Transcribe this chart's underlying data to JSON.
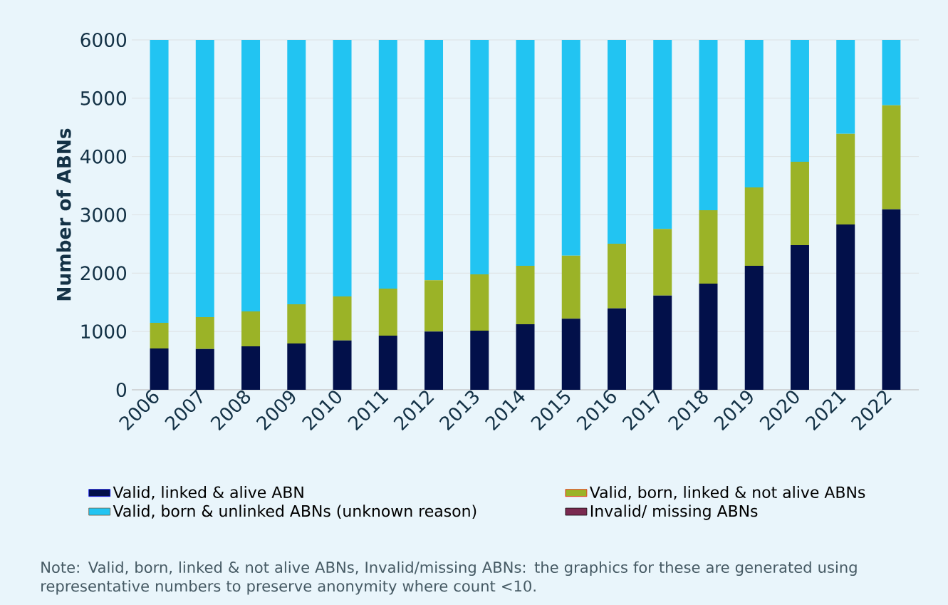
{
  "chart_data": {
    "type": "bar",
    "stacked": true,
    "ylabel": "Number of ABNs",
    "categories": [
      "2006",
      "2007",
      "2008",
      "2009",
      "2010",
      "2011",
      "2012",
      "2013",
      "2014",
      "2015",
      "2016",
      "2017",
      "2018",
      "2019",
      "2020",
      "2021",
      "2022"
    ],
    "series": [
      {
        "name": "Valid, linked & alive ABN",
        "color": "#02104a",
        "values": [
          710,
          700,
          745,
          795,
          845,
          930,
          1000,
          1015,
          1125,
          1220,
          1395,
          1615,
          1820,
          2125,
          2480,
          2835,
          3095
        ]
      },
      {
        "name": "Valid, born, linked & not alive ABNs",
        "color": "#9bb327",
        "values": [
          440,
          545,
          600,
          670,
          755,
          805,
          880,
          965,
          1000,
          1080,
          1110,
          1145,
          1260,
          1345,
          1430,
          1555,
          1785
        ]
      },
      {
        "name": "Valid, born & unlinked ABNs (unknown reason)",
        "color": "#22c4f2",
        "values": [
          4850,
          4755,
          4655,
          4535,
          4400,
          4265,
          4120,
          4020,
          3875,
          3700,
          3495,
          3240,
          2920,
          2530,
          2090,
          1610,
          1120
        ]
      },
      {
        "name": "Invalid/ missing ABNs",
        "color": "#7a2a50",
        "values": [
          0,
          0,
          0,
          0,
          0,
          0,
          0,
          0,
          0,
          0,
          0,
          0,
          0,
          0,
          0,
          0,
          0
        ]
      }
    ],
    "ylim": [
      0,
      6000
    ],
    "yticks": [
      0,
      1000,
      2000,
      3000,
      4000,
      5000,
      6000
    ],
    "grid": "y",
    "legend": "bottom",
    "annotations": [
      "Note: Valid, born, linked & not alive ABNs, Invalid/missing ABNs: the graphics for these are generated using representative numbers to preserve anonymity where count <10."
    ]
  }
}
